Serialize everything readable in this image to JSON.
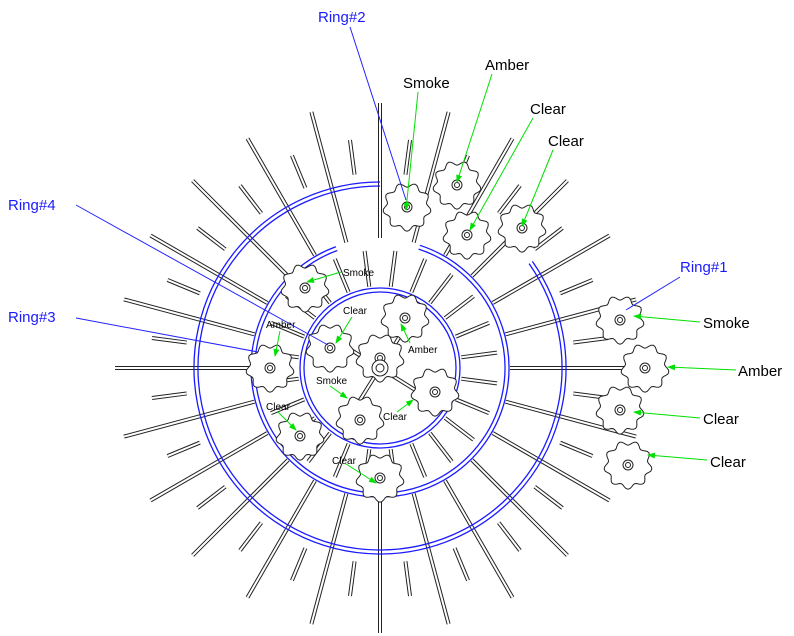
{
  "rings": [
    "Ring#1",
    "Ring#2",
    "Ring#3",
    "Ring#4"
  ],
  "outer_callouts": [
    "Smoke",
    "Amber",
    "Clear",
    "Clear",
    "Smoke",
    "Amber",
    "Clear",
    "Clear"
  ],
  "inner_callouts": [
    "Smoke",
    "Clear",
    "Amber",
    "Amber",
    "Smoke",
    "Clear",
    "Clear",
    "Clear"
  ]
}
